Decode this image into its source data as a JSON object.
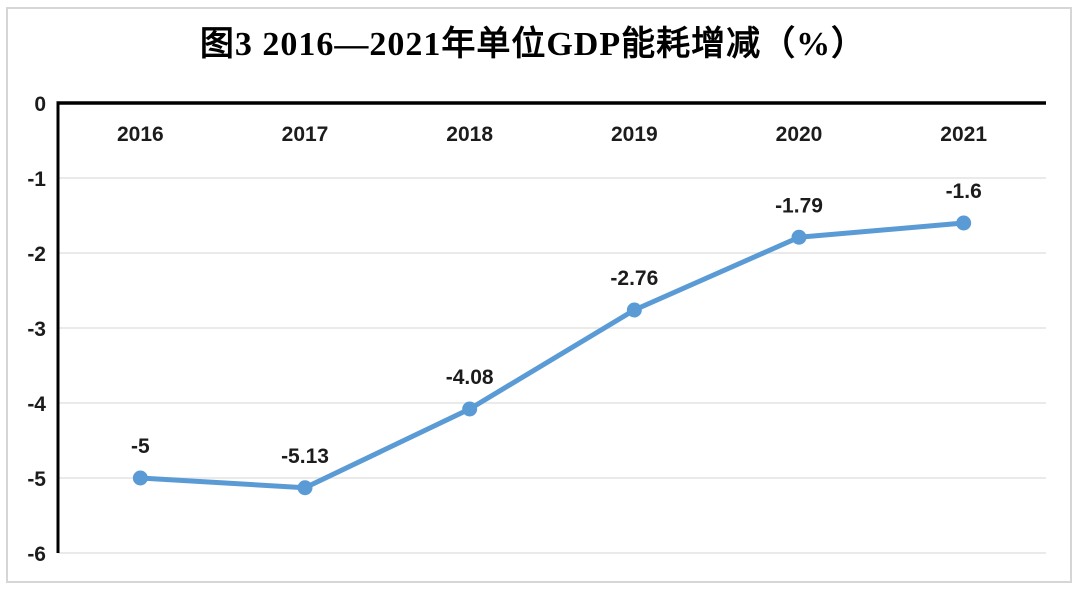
{
  "title": "图3 2016—2021年单位GDP能耗增减（%）",
  "chart_data": {
    "type": "line",
    "title": "图3 2016—2021年单位GDP能耗增减（%）",
    "categories": [
      "2016",
      "2017",
      "2018",
      "2019",
      "2020",
      "2021"
    ],
    "series": [
      {
        "name": "单位GDP能耗增减",
        "values": [
          -5,
          -5.13,
          -4.08,
          -2.76,
          -1.79,
          -1.6
        ]
      }
    ],
    "data_labels": [
      "-5",
      "-5.13",
      "-4.08",
      "-2.76",
      "-1.79",
      "-1.6"
    ],
    "y_ticks": [
      0,
      -1,
      -2,
      -3,
      -4,
      -5,
      -6
    ],
    "y_tick_labels": [
      "0",
      "-1",
      "-2",
      "-3",
      "-4",
      "-5",
      "-6"
    ],
    "ylim": [
      -6,
      0
    ],
    "xlabel": "",
    "ylabel": "",
    "grid": true,
    "legend_position": "none",
    "colors": {
      "line": "#5b9bd5",
      "marker": "#5b9bd5",
      "gridline": "#e4e4e4",
      "axis": "#000000",
      "text": "#1c1c1c",
      "frame_border": "#d6d6d6",
      "background": "#ffffff"
    }
  }
}
